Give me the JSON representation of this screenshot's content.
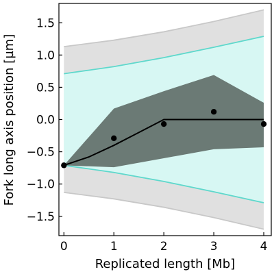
{
  "chart_data": {
    "type": "line",
    "title": "",
    "xlabel": "Replicated length [Mb]",
    "ylabel": "Fork long axis position [µm]",
    "xlim": [
      -0.1,
      4.15
    ],
    "ylim": [
      -1.8,
      1.8
    ],
    "xticks": [
      0,
      1,
      2,
      3,
      4
    ],
    "yticks": [
      -1.5,
      -1.0,
      -0.5,
      0.0,
      0.5,
      1.0,
      1.5
    ],
    "xtick_labels": [
      "0",
      "1",
      "2",
      "3",
      "4"
    ],
    "ytick_labels": [
      "−1.5",
      "−1.0",
      "−0.5",
      "0.0",
      "0.5",
      "1.0",
      "1.5"
    ],
    "grid": false,
    "bands": {
      "outer_gray": {
        "color": "#e0e0e0",
        "edge_color": "#c8c8c8",
        "x": [
          0,
          1,
          2,
          3,
          4
        ],
        "upper": [
          1.13,
          1.23,
          1.36,
          1.52,
          1.7
        ],
        "lower": [
          -1.13,
          -1.23,
          -1.36,
          -1.52,
          -1.7
        ]
      },
      "cyan": {
        "color": "#d7f7f3",
        "edge_color": "#5fd8cc",
        "x": [
          0,
          1,
          2,
          3,
          4
        ],
        "upper": [
          0.71,
          0.82,
          0.96,
          1.12,
          1.29
        ],
        "lower": [
          -0.71,
          -0.82,
          -0.96,
          -1.12,
          -1.29
        ]
      },
      "dark": {
        "color": "#6b7a75",
        "x": [
          0,
          1,
          2,
          3,
          4
        ],
        "upper": [
          -0.71,
          0.17,
          0.44,
          0.69,
          0.26
        ],
        "lower": [
          -0.71,
          -0.74,
          -0.6,
          -0.46,
          -0.43
        ]
      }
    },
    "series": [
      {
        "type": "line",
        "color": "#000000",
        "x": [
          0,
          0.5,
          1.0,
          1.5,
          2.0,
          3.0,
          4.0
        ],
        "y": [
          -0.71,
          -0.58,
          -0.4,
          -0.2,
          0.0,
          0.0,
          0.0
        ]
      },
      {
        "type": "scatter",
        "color": "#000000",
        "x": [
          0,
          1,
          2,
          3,
          4
        ],
        "y": [
          -0.71,
          -0.29,
          -0.07,
          0.12,
          -0.07
        ]
      }
    ]
  }
}
